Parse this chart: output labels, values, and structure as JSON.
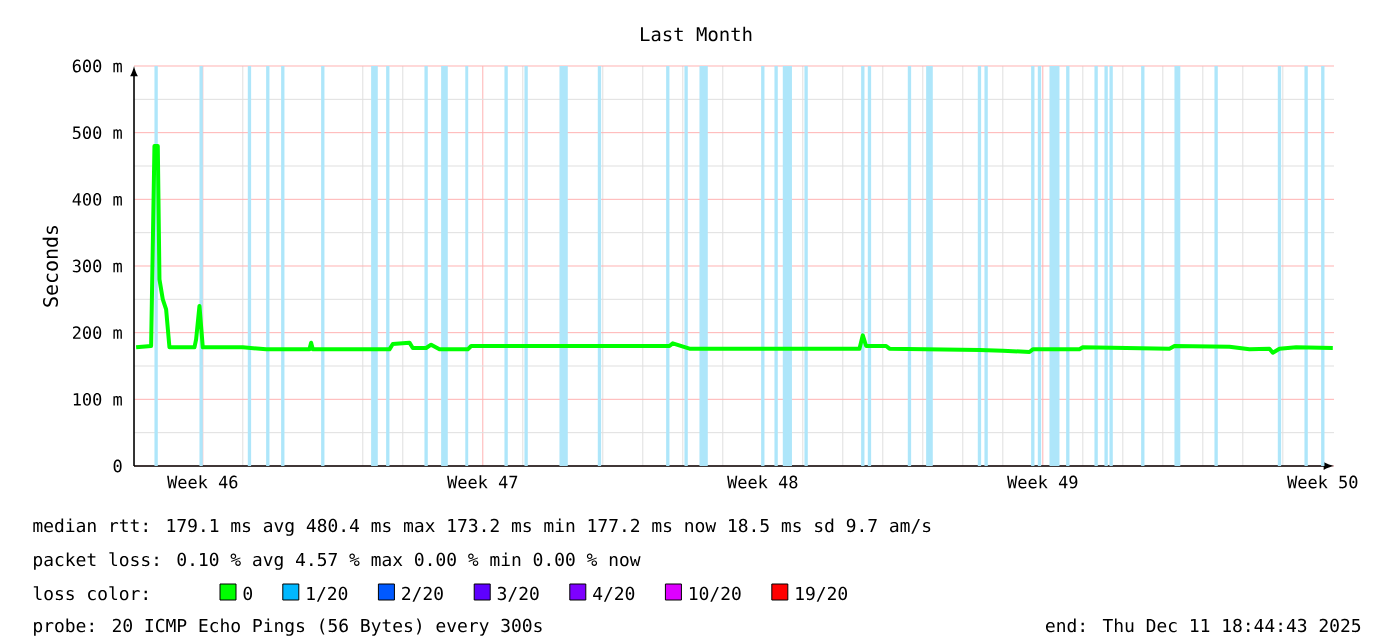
{
  "chart_data": {
    "type": "line",
    "title": "Last Month",
    "ylabel": "Seconds",
    "xlim": [
      "2025-11-11T18:44",
      "2025-12-11T18:44"
    ],
    "ylim": [
      0,
      600
    ],
    "xticks": [
      {
        "value": "2025-11-13T12:00",
        "label": "Week 46"
      },
      {
        "value": "2025-11-20T12:00",
        "label": "Week 47"
      },
      {
        "value": "2025-11-27T12:00",
        "label": "Week 48"
      },
      {
        "value": "2025-12-04T12:00",
        "label": "Week 49"
      },
      {
        "value": "2025-12-11T12:00",
        "label": "Week 50"
      }
    ],
    "yticks": [
      0,
      {
        "value": 100,
        "label": "100 m"
      },
      {
        "value": 200,
        "label": "200 m"
      },
      {
        "value": 300,
        "label": "300 m"
      },
      {
        "value": 400,
        "label": "400 m"
      },
      {
        "value": 500,
        "label": "500 m"
      },
      {
        "value": 600,
        "label": "600 m"
      }
    ],
    "grid": true,
    "legend": "bottom",
    "legend_title": "loss color:",
    "marker": "none",
    "line_style": "solid",
    "series": [
      {
        "name": "0",
        "color": "#00ff00",
        "x": [
          "2025-11-11T20:00",
          "2025-11-12T05:00",
          "2025-11-12T07:00",
          "2025-11-12T09:00",
          "2025-11-12T10:00",
          "2025-11-12T12:00",
          "2025-11-12T14:00",
          "2025-11-12T16:00",
          "2025-11-13T07:00",
          "2025-11-13T08:00",
          "2025-11-13T10:00",
          "2025-11-13T12:00",
          "2025-11-14T12:00",
          "2025-11-15T02:00",
          "2025-11-16T04:00",
          "2025-11-16T05:00",
          "2025-11-16T06:00",
          "2025-11-18T04:00",
          "2025-11-18T06:00",
          "2025-11-18T16:00",
          "2025-11-18T18:00",
          "2025-11-19T02:00",
          "2025-11-19T05:00",
          "2025-11-19T10:00",
          "2025-11-20T03:00",
          "2025-11-20T05:00",
          "2025-11-22T12:00",
          "2025-11-25T04:00",
          "2025-11-25T06:00",
          "2025-11-25T16:00",
          "2025-11-29T22:00",
          "2025-11-30T00:00",
          "2025-11-30T02:00",
          "2025-11-30T14:00",
          "2025-11-30T16:00",
          "2025-12-02T22:00",
          "2025-12-03T12:00",
          "2025-12-04T04:00",
          "2025-12-04T06:00",
          "2025-12-05T10:00",
          "2025-12-05T12:00",
          "2025-12-07T16:00",
          "2025-12-07T19:00",
          "2025-12-09T04:00",
          "2025-12-09T16:00",
          "2025-12-10T04:00",
          "2025-12-10T06:00",
          "2025-12-10T10:00",
          "2025-12-10T20:00",
          "2025-12-11T18:00"
        ],
        "values": [
          178,
          180,
          480,
          480,
          280,
          250,
          235,
          178,
          178,
          190,
          240,
          178,
          178,
          175,
          175,
          185,
          175,
          175,
          183,
          185,
          177,
          177,
          182,
          175,
          175,
          180,
          180,
          180,
          184,
          176,
          176,
          196,
          180,
          180,
          176,
          174,
          173,
          171,
          175,
          175,
          178,
          176,
          180,
          179,
          175,
          176,
          170,
          176,
          178,
          177
        ]
      },
      {
        "name": "1/20",
        "color": "#00b8ff"
      },
      {
        "name": "2/20",
        "color": "#0059ff"
      },
      {
        "name": "3/20",
        "color": "#5e00ff"
      },
      {
        "name": "4/20",
        "color": "#7e00ff"
      },
      {
        "name": "10/20",
        "color": "#dd00ff"
      },
      {
        "name": "19/20",
        "color": "#ff0000"
      }
    ],
    "bands": [
      {
        "axis": "x",
        "from": "2025-11-12T07:00",
        "to": "2025-11-12T09:00",
        "color": "#aee6fa"
      },
      {
        "axis": "x",
        "from": "2025-11-13T10:00",
        "to": "2025-11-13T12:00",
        "color": "#aee6fa"
      },
      {
        "axis": "x",
        "from": "2025-11-14T15:00",
        "to": "2025-11-14T17:00",
        "color": "#aee6fa"
      },
      {
        "axis": "x",
        "from": "2025-11-15T02:00",
        "to": "2025-11-15T04:00",
        "color": "#aee6fa"
      },
      {
        "axis": "x",
        "from": "2025-11-15T11:00",
        "to": "2025-11-15T13:00",
        "color": "#aee6fa"
      },
      {
        "axis": "x",
        "from": "2025-11-16T11:00",
        "to": "2025-11-16T13:00",
        "color": "#aee6fa"
      },
      {
        "axis": "x",
        "from": "2025-11-17T17:00",
        "to": "2025-11-17T21:00",
        "color": "#aee6fa"
      },
      {
        "axis": "x",
        "from": "2025-11-18T02:00",
        "to": "2025-11-18T04:00",
        "color": "#aee6fa"
      },
      {
        "axis": "x",
        "from": "2025-11-19T01:00",
        "to": "2025-11-19T03:00",
        "color": "#aee6fa"
      },
      {
        "axis": "x",
        "from": "2025-11-19T11:00",
        "to": "2025-11-19T15:00",
        "color": "#aee6fa"
      },
      {
        "axis": "x",
        "from": "2025-11-20T01:30",
        "to": "2025-11-20T03:15",
        "color": "#aee6fa"
      },
      {
        "axis": "x",
        "from": "2025-11-21T01:00",
        "to": "2025-11-21T03:00",
        "color": "#aee6fa"
      },
      {
        "axis": "x",
        "from": "2025-11-21T13:00",
        "to": "2025-11-21T15:00",
        "color": "#aee6fa"
      },
      {
        "axis": "x",
        "from": "2025-11-22T10:00",
        "to": "2025-11-22T15:00",
        "color": "#aee6fa"
      },
      {
        "axis": "x",
        "from": "2025-11-23T09:00",
        "to": "2025-11-23T11:00",
        "color": "#aee6fa"
      },
      {
        "axis": "x",
        "from": "2025-11-25T02:00",
        "to": "2025-11-25T04:00",
        "color": "#aee6fa"
      },
      {
        "axis": "x",
        "from": "2025-11-25T13:00",
        "to": "2025-11-25T15:00",
        "color": "#aee6fa"
      },
      {
        "axis": "x",
        "from": "2025-11-25T22:00",
        "to": "2025-11-26T03:00",
        "color": "#aee6fa"
      },
      {
        "axis": "x",
        "from": "2025-11-27T11:00",
        "to": "2025-11-27T13:00",
        "color": "#aee6fa"
      },
      {
        "axis": "x",
        "from": "2025-11-27T19:00",
        "to": "2025-11-27T21:00",
        "color": "#aee6fa"
      },
      {
        "axis": "x",
        "from": "2025-11-28T00:00",
        "to": "2025-11-28T05:30",
        "color": "#aee6fa"
      },
      {
        "axis": "x",
        "from": "2025-11-28T13:00",
        "to": "2025-11-28T15:00",
        "color": "#aee6fa"
      },
      {
        "axis": "x",
        "from": "2025-11-29T23:00",
        "to": "2025-11-30T01:00",
        "color": "#aee6fa"
      },
      {
        "axis": "x",
        "from": "2025-11-30T03:00",
        "to": "2025-11-30T05:00",
        "color": "#aee6fa"
      },
      {
        "axis": "x",
        "from": "2025-12-01T03:00",
        "to": "2025-12-01T05:00",
        "color": "#aee6fa"
      },
      {
        "axis": "x",
        "from": "2025-12-01T14:00",
        "to": "2025-12-01T18:00",
        "color": "#aee6fa"
      },
      {
        "axis": "x",
        "from": "2025-12-02T21:00",
        "to": "2025-12-02T23:00",
        "color": "#aee6fa"
      },
      {
        "axis": "x",
        "from": "2025-12-03T01:00",
        "to": "2025-12-03T03:00",
        "color": "#aee6fa"
      },
      {
        "axis": "x",
        "from": "2025-12-04T05:00",
        "to": "2025-12-04T07:00",
        "color": "#aee6fa"
      },
      {
        "axis": "x",
        "from": "2025-12-04T09:00",
        "to": "2025-12-04T11:00",
        "color": "#aee6fa"
      },
      {
        "axis": "x",
        "from": "2025-12-04T16:00",
        "to": "2025-12-04T22:00",
        "color": "#aee6fa"
      },
      {
        "axis": "x",
        "from": "2025-12-05T02:00",
        "to": "2025-12-05T04:00",
        "color": "#aee6fa"
      },
      {
        "axis": "x",
        "from": "2025-12-05T19:00",
        "to": "2025-12-05T21:00",
        "color": "#aee6fa"
      },
      {
        "axis": "x",
        "from": "2025-12-06T01:00",
        "to": "2025-12-06T03:00",
        "color": "#aee6fa"
      },
      {
        "axis": "x",
        "from": "2025-12-06T04:00",
        "to": "2025-12-06T06:00",
        "color": "#aee6fa"
      },
      {
        "axis": "x",
        "from": "2025-12-06T23:00",
        "to": "2025-12-07T01:00",
        "color": "#aee6fa"
      },
      {
        "axis": "x",
        "from": "2025-12-07T19:00",
        "to": "2025-12-07T22:30",
        "color": "#aee6fa"
      },
      {
        "axis": "x",
        "from": "2025-12-08T19:00",
        "to": "2025-12-08T21:00",
        "color": "#aee6fa"
      },
      {
        "axis": "x",
        "from": "2025-12-10T09:00",
        "to": "2025-12-10T11:00",
        "color": "#aee6fa"
      },
      {
        "axis": "x",
        "from": "2025-12-11T01:00",
        "to": "2025-12-11T03:00",
        "color": "#aee6fa"
      },
      {
        "axis": "x",
        "from": "2025-12-11T11:00",
        "to": "2025-12-11T13:00",
        "color": "#aee6fa"
      }
    ],
    "annotations": [
      "median rtt: 179.1 ms avg 480.4 ms max 173.2 ms min 177.2 ms now 18.5 ms sd 9.7 am/s",
      "packet loss: 0.10 % avg 4.57 % max 0.00 % min 0.00 % now",
      "probe: 20 ICMP Echo Pings (56 Bytes) every 300s",
      "end: Thu Dec 11 18:44:43 2025"
    ]
  }
}
